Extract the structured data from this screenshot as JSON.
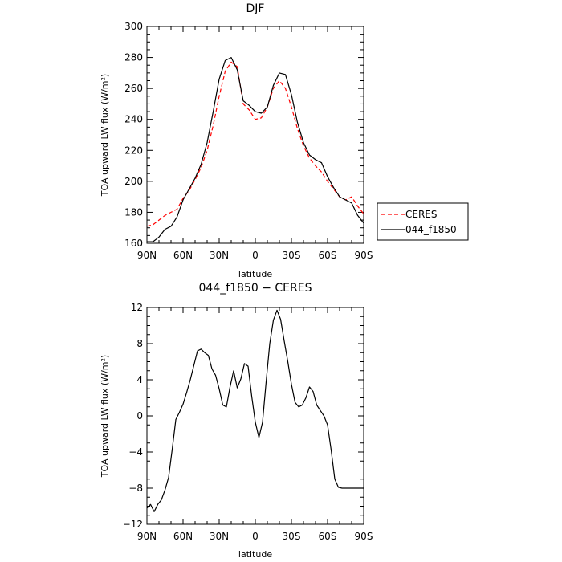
{
  "chart_data": [
    {
      "type": "line",
      "title": "DJF",
      "xlabel": "latitude",
      "ylabel": "TOA upward LW flux (W/m²)",
      "xlim": [
        90,
        -90
      ],
      "ylim": [
        160,
        300
      ],
      "x_ticks": [
        90,
        60,
        30,
        0,
        -30,
        -60,
        -90
      ],
      "x_tick_labels": [
        "90N",
        "60N",
        "30N",
        "0",
        "30S",
        "60S",
        "90S"
      ],
      "y_ticks": [
        160,
        180,
        200,
        220,
        240,
        260,
        280,
        300
      ],
      "y_tick_labels": [
        "160",
        "180",
        "200",
        "220",
        "240",
        "260",
        "280",
        "300"
      ],
      "legend_position": "outside-right-bottom",
      "series": [
        {
          "name": "CERES",
          "color": "#ff0000",
          "dash": "dashed",
          "x": [
            90,
            85,
            80,
            75,
            70,
            65,
            60,
            55,
            50,
            45,
            40,
            35,
            30,
            25,
            20,
            15,
            10,
            5,
            0,
            -5,
            -10,
            -15,
            -20,
            -25,
            -30,
            -35,
            -40,
            -45,
            -50,
            -55,
            -60,
            -65,
            -70,
            -75,
            -80,
            -85,
            -90
          ],
          "y": [
            171,
            172,
            175,
            178,
            180,
            182,
            189,
            194,
            201,
            209,
            220,
            236,
            255,
            271,
            277,
            274,
            250,
            246,
            240,
            241,
            248,
            260,
            265,
            260,
            248,
            234,
            223,
            215,
            210,
            206,
            200,
            195,
            190,
            188,
            190,
            184,
            179
          ]
        },
        {
          "name": "044_f1850",
          "color": "#000000",
          "dash": "solid",
          "x": [
            90,
            85,
            80,
            75,
            70,
            65,
            60,
            55,
            50,
            45,
            40,
            35,
            30,
            25,
            20,
            15,
            10,
            5,
            0,
            -5,
            -10,
            -15,
            -20,
            -25,
            -30,
            -35,
            -40,
            -45,
            -50,
            -55,
            -60,
            -65,
            -70,
            -75,
            -80,
            -85,
            -90
          ],
          "y": [
            161,
            161,
            164,
            169,
            171,
            177,
            188,
            195,
            202,
            211,
            225,
            245,
            266,
            278,
            280,
            272,
            252,
            249,
            245,
            244,
            248,
            262,
            270,
            269,
            256,
            238,
            225,
            217,
            214,
            212,
            203,
            196,
            190,
            188,
            186,
            178,
            173
          ]
        }
      ]
    },
    {
      "type": "line",
      "title": "044_f1850 − CERES",
      "xlabel": "latitude",
      "ylabel": "TOA upward LW flux (W/m²)",
      "xlim": [
        90,
        -90
      ],
      "ylim": [
        -12,
        12
      ],
      "x_ticks": [
        90,
        60,
        30,
        0,
        -30,
        -60,
        -90
      ],
      "x_tick_labels": [
        "90N",
        "60N",
        "30N",
        "0",
        "30S",
        "60S",
        "90S"
      ],
      "y_ticks": [
        -12,
        -8,
        -4,
        0,
        4,
        8,
        12
      ],
      "y_tick_labels": [
        "−12",
        "−8",
        "−4",
        "0",
        "4",
        "8",
        "12"
      ],
      "series": [
        {
          "color": "#000000",
          "dash": "solid",
          "x": [
            90,
            87,
            84,
            81,
            78,
            75,
            72,
            69,
            66,
            63,
            60,
            57,
            54,
            51,
            48,
            45,
            42,
            39,
            36,
            33,
            30,
            27,
            24,
            21,
            18,
            15,
            12,
            9,
            6,
            3,
            0,
            -3,
            -6,
            -9,
            -12,
            -15,
            -18,
            -21,
            -24,
            -27,
            -30,
            -33,
            -36,
            -39,
            -42,
            -45,
            -48,
            -51,
            -54,
            -57,
            -60,
            -63,
            -66,
            -69,
            -72,
            -75,
            -78,
            -81,
            -84,
            -87,
            -90
          ],
          "y": [
            -10.2,
            -9.8,
            -10.6,
            -9.8,
            -9.3,
            -8.2,
            -6.8,
            -3.7,
            -0.4,
            0.4,
            1.3,
            2.6,
            4.0,
            5.6,
            7.2,
            7.4,
            7.0,
            6.7,
            5.2,
            4.5,
            3.0,
            1.2,
            1.0,
            3.2,
            5.0,
            3.1,
            4.1,
            5.8,
            5.5,
            2.2,
            -0.7,
            -2.4,
            -0.7,
            3.8,
            8.0,
            10.6,
            11.7,
            10.7,
            8.3,
            6.0,
            3.5,
            1.5,
            1.0,
            1.2,
            2.0,
            3.2,
            2.7,
            1.2,
            0.6,
            0.0,
            -1.0,
            -3.8,
            -7.0,
            -7.9,
            -8.0,
            -8.0,
            -8.0,
            -8.0,
            -8.0,
            -8.0,
            -8.0
          ]
        }
      ]
    }
  ]
}
